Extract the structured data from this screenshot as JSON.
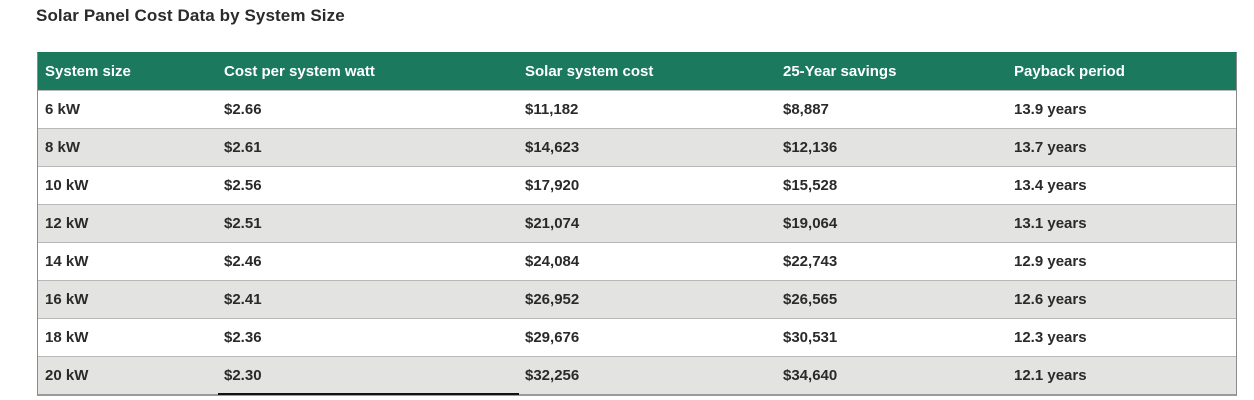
{
  "title": "Solar Panel Cost Data by System Size",
  "colors": {
    "header_bg": "#1b7a5e",
    "header_text": "#ffffff",
    "row_alt_bg": "#e3e3e1"
  },
  "table": {
    "headers": [
      "System size",
      "Cost per system watt",
      "Solar system cost",
      "25-Year savings",
      "Payback period"
    ],
    "rows": [
      [
        "6 kW",
        "$2.66",
        "$11,182",
        "$8,887",
        "13.9 years"
      ],
      [
        "8 kW",
        "$2.61",
        "$14,623",
        "$12,136",
        "13.7 years"
      ],
      [
        "10 kW",
        "$2.56",
        "$17,920",
        "$15,528",
        "13.4 years"
      ],
      [
        "12 kW",
        "$2.51",
        "$21,074",
        "$19,064",
        "13.1 years"
      ],
      [
        "14 kW",
        "$2.46",
        "$24,084",
        "$22,743",
        "12.9 years"
      ],
      [
        "16 kW",
        "$2.41",
        "$26,952",
        "$26,565",
        "12.6 years"
      ],
      [
        "18 kW",
        "$2.36",
        "$29,676",
        "$30,531",
        "12.3 years"
      ],
      [
        "20 kW",
        "$2.30",
        "$32,256",
        "$34,640",
        "12.1 years"
      ]
    ]
  }
}
